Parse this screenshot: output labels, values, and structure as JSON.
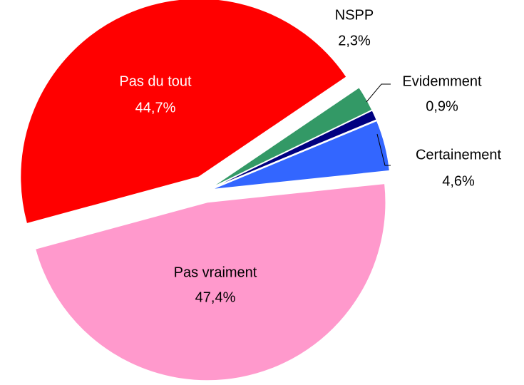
{
  "chart_data": {
    "type": "pie",
    "categories": [
      "Pas vraiment",
      "Pas du tout",
      "NSPP",
      "Evidemment",
      "Certainement"
    ],
    "values": [
      47.4,
      44.7,
      2.3,
      0.9,
      4.6
    ],
    "value_labels": [
      "47,4%",
      "44,7%",
      "2,3%",
      "0,9%",
      "4,6%"
    ],
    "colors": [
      "#ff99cc",
      "#ff0000",
      "#339966",
      "#000080",
      "#3366ff"
    ]
  }
}
